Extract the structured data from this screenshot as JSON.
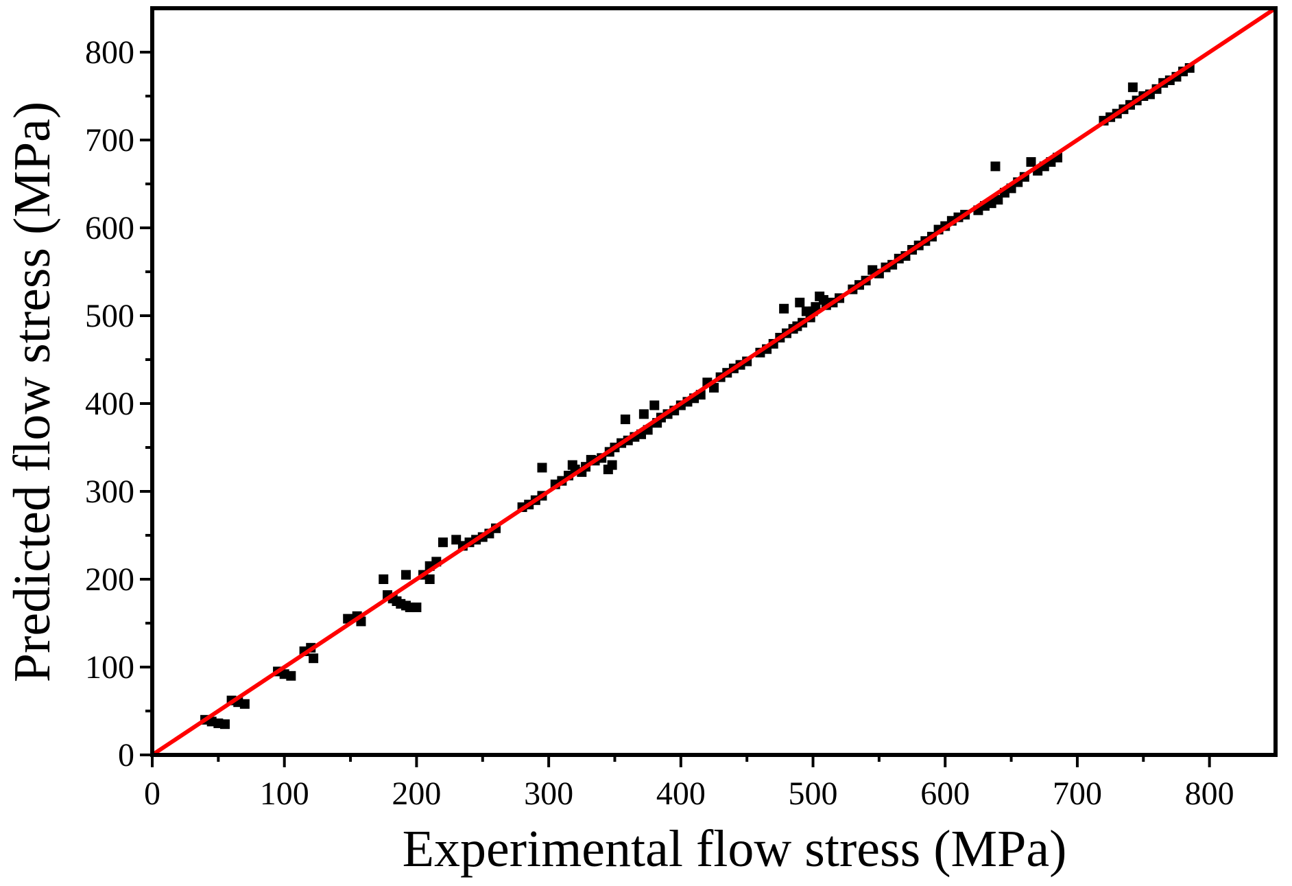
{
  "chart_data": {
    "type": "scatter",
    "title": "",
    "xlabel": "Experimental flow stress (MPa)",
    "ylabel": "Predicted flow stress (MPa)",
    "xlim": [
      0,
      850
    ],
    "ylim": [
      0,
      850
    ],
    "xticks": [
      0,
      100,
      200,
      300,
      400,
      500,
      600,
      700,
      800
    ],
    "yticks": [
      0,
      100,
      200,
      300,
      400,
      500,
      600,
      700,
      800
    ],
    "xtick_labels": [
      "0",
      "100",
      "200",
      "300",
      "400",
      "500",
      "600",
      "700",
      "800"
    ],
    "ytick_labels": [
      "0",
      "100",
      "200",
      "300",
      "400",
      "500",
      "600",
      "700",
      "800"
    ],
    "grid": false,
    "legend": "none",
    "series": [
      {
        "name": "data",
        "marker": "square",
        "color": "#000000",
        "points": [
          [
            40,
            40
          ],
          [
            45,
            38
          ],
          [
            50,
            36
          ],
          [
            55,
            35
          ],
          [
            60,
            62
          ],
          [
            65,
            60
          ],
          [
            70,
            58
          ],
          [
            95,
            95
          ],
          [
            100,
            92
          ],
          [
            105,
            90
          ],
          [
            115,
            118
          ],
          [
            120,
            122
          ],
          [
            122,
            110
          ],
          [
            148,
            155
          ],
          [
            155,
            158
          ],
          [
            158,
            152
          ],
          [
            175,
            200
          ],
          [
            178,
            182
          ],
          [
            182,
            178
          ],
          [
            185,
            175
          ],
          [
            188,
            172
          ],
          [
            192,
            170
          ],
          [
            195,
            168
          ],
          [
            200,
            168
          ],
          [
            192,
            205
          ],
          [
            205,
            205
          ],
          [
            210,
            200
          ],
          [
            210,
            215
          ],
          [
            215,
            220
          ],
          [
            220,
            242
          ],
          [
            230,
            245
          ],
          [
            235,
            238
          ],
          [
            240,
            242
          ],
          [
            245,
            245
          ],
          [
            250,
            248
          ],
          [
            255,
            252
          ],
          [
            260,
            258
          ],
          [
            280,
            282
          ],
          [
            285,
            285
          ],
          [
            290,
            290
          ],
          [
            295,
            295
          ],
          [
            295,
            327
          ],
          [
            305,
            308
          ],
          [
            310,
            312
          ],
          [
            315,
            318
          ],
          [
            318,
            330
          ],
          [
            320,
            325
          ],
          [
            325,
            322
          ],
          [
            328,
            328
          ],
          [
            332,
            336
          ],
          [
            335,
            335
          ],
          [
            340,
            338
          ],
          [
            345,
            325
          ],
          [
            348,
            330
          ],
          [
            346,
            345
          ],
          [
            350,
            350
          ],
          [
            355,
            355
          ],
          [
            358,
            382
          ],
          [
            360,
            358
          ],
          [
            365,
            362
          ],
          [
            370,
            365
          ],
          [
            372,
            388
          ],
          [
            375,
            370
          ],
          [
            380,
            398
          ],
          [
            382,
            378
          ],
          [
            385,
            384
          ],
          [
            390,
            388
          ],
          [
            395,
            392
          ],
          [
            400,
            398
          ],
          [
            405,
            402
          ],
          [
            410,
            406
          ],
          [
            415,
            410
          ],
          [
            420,
            424
          ],
          [
            425,
            418
          ],
          [
            430,
            430
          ],
          [
            435,
            435
          ],
          [
            440,
            440
          ],
          [
            445,
            444
          ],
          [
            450,
            448
          ],
          [
            460,
            458
          ],
          [
            465,
            462
          ],
          [
            470,
            468
          ],
          [
            475,
            475
          ],
          [
            478,
            508
          ],
          [
            480,
            480
          ],
          [
            485,
            485
          ],
          [
            488,
            488
          ],
          [
            490,
            515
          ],
          [
            492,
            492
          ],
          [
            495,
            505
          ],
          [
            498,
            498
          ],
          [
            500,
            505
          ],
          [
            502,
            510
          ],
          [
            505,
            522
          ],
          [
            508,
            518
          ],
          [
            510,
            512
          ],
          [
            515,
            515
          ],
          [
            520,
            520
          ],
          [
            530,
            530
          ],
          [
            535,
            535
          ],
          [
            540,
            540
          ],
          [
            545,
            552
          ],
          [
            550,
            548
          ],
          [
            555,
            555
          ],
          [
            560,
            558
          ],
          [
            565,
            565
          ],
          [
            570,
            568
          ],
          [
            575,
            575
          ],
          [
            580,
            580
          ],
          [
            585,
            585
          ],
          [
            590,
            590
          ],
          [
            595,
            598
          ],
          [
            600,
            602
          ],
          [
            605,
            608
          ],
          [
            610,
            612
          ],
          [
            615,
            615
          ],
          [
            625,
            620
          ],
          [
            630,
            625
          ],
          [
            635,
            628
          ],
          [
            638,
            670
          ],
          [
            640,
            632
          ],
          [
            645,
            640
          ],
          [
            650,
            645
          ],
          [
            655,
            652
          ],
          [
            660,
            658
          ],
          [
            665,
            675
          ],
          [
            670,
            665
          ],
          [
            675,
            670
          ],
          [
            680,
            675
          ],
          [
            685,
            680
          ],
          [
            720,
            722
          ],
          [
            725,
            726
          ],
          [
            730,
            730
          ],
          [
            735,
            735
          ],
          [
            740,
            740
          ],
          [
            742,
            760
          ],
          [
            745,
            745
          ],
          [
            750,
            750
          ],
          [
            755,
            752
          ],
          [
            760,
            758
          ],
          [
            765,
            765
          ],
          [
            770,
            768
          ],
          [
            775,
            772
          ],
          [
            780,
            778
          ],
          [
            785,
            782
          ]
        ]
      },
      {
        "name": "fit",
        "type": "line",
        "color": "#ff0000",
        "x": [
          0,
          850
        ],
        "y": [
          0,
          850
        ]
      }
    ]
  }
}
